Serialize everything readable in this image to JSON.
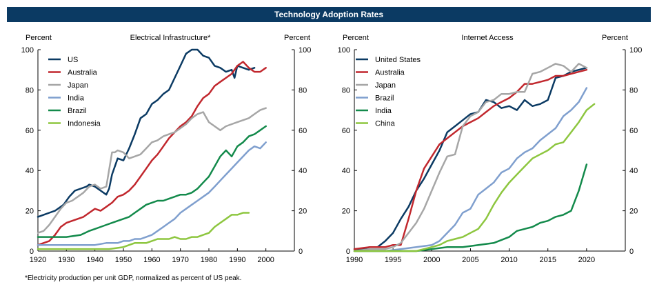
{
  "page_title": "Technology Adoption Rates",
  "footnote": "*Electricity production per unit GDP, normalized as percent of US peak.",
  "chart_data": [
    {
      "type": "line",
      "title": "Electrical Infrastructure*",
      "ylabel_left": "Percent",
      "ylabel_right": "Percent",
      "xlim": [
        1920,
        2010
      ],
      "ylim": [
        0,
        100
      ],
      "xticks": [
        1920,
        1930,
        1940,
        1950,
        1960,
        1970,
        1980,
        1990,
        2000
      ],
      "yticks": [
        0,
        20,
        40,
        60,
        80,
        100
      ],
      "legend": "top-left",
      "series": [
        {
          "name": "US",
          "color": "#0b3a63",
          "x": [
            1920,
            1922,
            1924,
            1926,
            1928,
            1929,
            1931,
            1933,
            1935,
            1937,
            1938,
            1940,
            1942,
            1944,
            1945,
            1946,
            1948,
            1950,
            1952,
            1954,
            1956,
            1958,
            1960,
            1962,
            1964,
            1966,
            1968,
            1970,
            1972,
            1974,
            1976,
            1978,
            1980,
            1982,
            1984,
            1986,
            1988,
            1989,
            1990,
            1992,
            1994,
            1996
          ],
          "y": [
            17,
            18,
            19,
            20,
            22,
            23,
            27,
            30,
            31,
            32,
            33,
            32,
            30,
            28,
            31,
            38,
            46,
            45,
            51,
            58,
            66,
            68,
            73,
            75,
            78,
            80,
            86,
            92,
            98,
            100,
            100,
            97,
            96,
            92,
            91,
            89,
            90,
            86,
            92,
            91,
            90,
            91
          ]
        },
        {
          "name": "Australia",
          "color": "#c1272d",
          "x": [
            1920,
            1924,
            1926,
            1928,
            1930,
            1932,
            1934,
            1936,
            1938,
            1940,
            1942,
            1944,
            1946,
            1948,
            1950,
            1952,
            1954,
            1956,
            1958,
            1960,
            1962,
            1964,
            1966,
            1968,
            1970,
            1972,
            1974,
            1976,
            1978,
            1980,
            1982,
            1984,
            1986,
            1988,
            1990,
            1992,
            1994,
            1996,
            1998,
            2000
          ],
          "y": [
            3,
            5,
            8,
            12,
            14,
            15,
            16,
            17,
            19,
            21,
            20,
            22,
            24,
            27,
            28,
            30,
            33,
            37,
            41,
            45,
            48,
            52,
            56,
            59,
            62,
            64,
            67,
            72,
            76,
            78,
            82,
            84,
            86,
            88,
            92,
            94,
            91,
            89,
            89,
            91
          ]
        },
        {
          "name": "Japan",
          "color": "#a6a6a6",
          "x": [
            1920,
            1922,
            1924,
            1926,
            1928,
            1930,
            1932,
            1934,
            1936,
            1938,
            1940,
            1942,
            1944,
            1946,
            1947,
            1948,
            1950,
            1952,
            1954,
            1956,
            1958,
            1960,
            1962,
            1964,
            1966,
            1968,
            1970,
            1972,
            1974,
            1976,
            1978,
            1980,
            1982,
            1984,
            1986,
            1988,
            1990,
            1992,
            1994,
            1996,
            1998,
            2000
          ],
          "y": [
            9,
            10,
            13,
            17,
            21,
            24,
            25,
            27,
            29,
            32,
            33,
            31,
            32,
            49,
            49,
            50,
            49,
            46,
            47,
            48,
            51,
            54,
            55,
            57,
            58,
            59,
            61,
            63,
            66,
            68,
            69,
            64,
            62,
            60,
            62,
            63,
            64,
            65,
            66,
            68,
            70,
            71
          ]
        },
        {
          "name": "India",
          "color": "#7f9fce",
          "x": [
            1920,
            1930,
            1940,
            1944,
            1946,
            1948,
            1950,
            1952,
            1954,
            1956,
            1958,
            1960,
            1962,
            1964,
            1966,
            1968,
            1970,
            1972,
            1974,
            1976,
            1978,
            1980,
            1982,
            1984,
            1986,
            1988,
            1990,
            1992,
            1994,
            1996,
            1998,
            2000
          ],
          "y": [
            3,
            3,
            3,
            4,
            4,
            4,
            5,
            5,
            6,
            6,
            7,
            8,
            10,
            12,
            14,
            16,
            19,
            21,
            23,
            25,
            27,
            29,
            32,
            35,
            38,
            41,
            44,
            47,
            50,
            52,
            51,
            54
          ]
        },
        {
          "name": "Brazil",
          "color": "#138a4b",
          "x": [
            1920,
            1925,
            1930,
            1935,
            1938,
            1940,
            1942,
            1944,
            1946,
            1948,
            1950,
            1952,
            1954,
            1956,
            1958,
            1960,
            1962,
            1964,
            1966,
            1968,
            1970,
            1972,
            1974,
            1976,
            1978,
            1980,
            1982,
            1984,
            1986,
            1988,
            1990,
            1992,
            1994,
            1996,
            1998,
            2000
          ],
          "y": [
            7,
            7,
            7,
            8,
            10,
            11,
            12,
            13,
            14,
            15,
            16,
            17,
            19,
            21,
            23,
            24,
            25,
            25,
            26,
            27,
            28,
            28,
            29,
            31,
            34,
            37,
            42,
            47,
            50,
            47,
            52,
            54,
            57,
            58,
            60,
            62
          ]
        },
        {
          "name": "Indonesia",
          "color": "#8dc63f",
          "x": [
            1920,
            1930,
            1940,
            1945,
            1950,
            1952,
            1954,
            1956,
            1958,
            1960,
            1962,
            1964,
            1966,
            1968,
            1970,
            1972,
            1974,
            1976,
            1978,
            1980,
            1982,
            1984,
            1986,
            1988,
            1990,
            1992,
            1994
          ],
          "y": [
            1,
            1,
            1,
            1,
            2,
            3,
            4,
            4,
            4,
            5,
            6,
            6,
            6,
            7,
            6,
            6,
            7,
            7,
            8,
            9,
            12,
            14,
            16,
            18,
            18,
            19,
            19
          ]
        }
      ]
    },
    {
      "type": "line",
      "title": "Internet Access",
      "ylabel_left": "Percent",
      "ylabel_right": "Percent",
      "xlim": [
        1990,
        2025
      ],
      "ylim": [
        0,
        100
      ],
      "xticks": [
        1990,
        1995,
        2000,
        2005,
        2010,
        2015,
        2020
      ],
      "yticks": [
        0,
        20,
        40,
        60,
        80,
        100
      ],
      "legend": "top-left",
      "series": [
        {
          "name": "United States",
          "color": "#0b3a63",
          "x": [
            1990,
            1991,
            1992,
            1993,
            1994,
            1995,
            1996,
            1997,
            1998,
            1999,
            2000,
            2001,
            2002,
            2003,
            2004,
            2005,
            2006,
            2007,
            2008,
            2009,
            2010,
            2011,
            2012,
            2013,
            2014,
            2015,
            2016,
            2017,
            2018,
            2019,
            2020
          ],
          "y": [
            1,
            1,
            2,
            2,
            5,
            9,
            16,
            22,
            30,
            36,
            43,
            50,
            59,
            62,
            65,
            68,
            69,
            75,
            74,
            71,
            72,
            70,
            75,
            72,
            73,
            75,
            86,
            87,
            89,
            90,
            91
          ]
        },
        {
          "name": "Australia",
          "color": "#c1272d",
          "x": [
            1990,
            1992,
            1994,
            1995,
            1996,
            1997,
            1998,
            1999,
            2000,
            2001,
            2002,
            2003,
            2004,
            2005,
            2006,
            2007,
            2008,
            2009,
            2010,
            2011,
            2012,
            2013,
            2014,
            2015,
            2016,
            2017,
            2018,
            2019,
            2020
          ],
          "y": [
            1,
            2,
            2,
            3,
            3,
            16,
            30,
            41,
            47,
            53,
            56,
            59,
            62,
            64,
            66,
            69,
            72,
            74,
            76,
            79,
            83,
            83,
            84,
            85,
            87,
            87,
            88,
            89,
            90
          ]
        },
        {
          "name": "Japan",
          "color": "#a6a6a6",
          "x": [
            1990,
            1992,
            1994,
            1995,
            1996,
            1997,
            1998,
            1999,
            2000,
            2001,
            2002,
            2003,
            2004,
            2005,
            2006,
            2007,
            2008,
            2009,
            2010,
            2011,
            2012,
            2013,
            2014,
            2015,
            2016,
            2017,
            2018,
            2019,
            2020
          ],
          "y": [
            0,
            1,
            1,
            2,
            4,
            9,
            14,
            21,
            30,
            39,
            47,
            48,
            62,
            67,
            69,
            74,
            75,
            78,
            78,
            79,
            79,
            88,
            89,
            91,
            93,
            92,
            89,
            93,
            91
          ]
        },
        {
          "name": "Brazil",
          "color": "#7f9fce",
          "x": [
            1990,
            1994,
            1996,
            1998,
            2000,
            2001,
            2002,
            2003,
            2004,
            2005,
            2006,
            2007,
            2008,
            2009,
            2010,
            2011,
            2012,
            2013,
            2014,
            2015,
            2016,
            2017,
            2018,
            2019,
            2020
          ],
          "y": [
            0,
            0,
            1,
            2,
            3,
            5,
            9,
            13,
            19,
            21,
            28,
            31,
            34,
            39,
            41,
            46,
            49,
            51,
            55,
            58,
            61,
            67,
            70,
            74,
            81
          ]
        },
        {
          "name": "India",
          "color": "#138a4b",
          "x": [
            1990,
            1995,
            1998,
            2000,
            2002,
            2004,
            2006,
            2008,
            2010,
            2011,
            2012,
            2013,
            2014,
            2015,
            2016,
            2017,
            2018,
            2019,
            2020
          ],
          "y": [
            0,
            0,
            0,
            1,
            2,
            2,
            3,
            4,
            7,
            10,
            11,
            12,
            14,
            15,
            17,
            18,
            20,
            30,
            43
          ]
        },
        {
          "name": "China",
          "color": "#8dc63f",
          "x": [
            1990,
            1996,
            1998,
            2000,
            2001,
            2002,
            2003,
            2004,
            2005,
            2006,
            2007,
            2008,
            2009,
            2010,
            2011,
            2012,
            2013,
            2014,
            2015,
            2016,
            2017,
            2018,
            2019,
            2020,
            2021
          ],
          "y": [
            0,
            0,
            0,
            2,
            3,
            5,
            6,
            7,
            9,
            11,
            16,
            23,
            29,
            34,
            38,
            42,
            46,
            48,
            50,
            53,
            54,
            59,
            64,
            70,
            73
          ]
        }
      ]
    }
  ]
}
